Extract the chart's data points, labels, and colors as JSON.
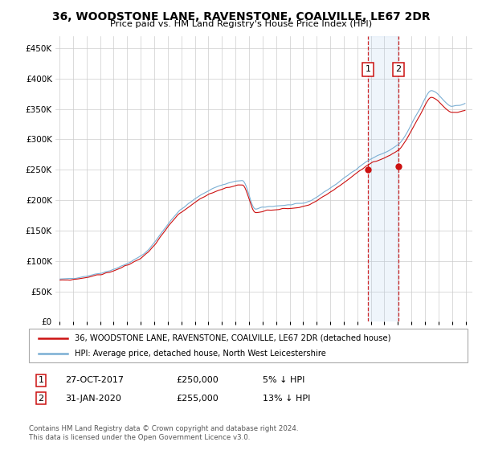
{
  "title": "36, WOODSTONE LANE, RAVENSTONE, COALVILLE, LE67 2DR",
  "subtitle": "Price paid vs. HM Land Registry's House Price Index (HPI)",
  "legend_line1": "36, WOODSTONE LANE, RAVENSTONE, COALVILLE, LE67 2DR (detached house)",
  "legend_line2": "HPI: Average price, detached house, North West Leicestershire",
  "footnote": "Contains HM Land Registry data © Crown copyright and database right 2024.\nThis data is licensed under the Open Government Licence v3.0.",
  "sale1_label": "1",
  "sale1_date": "27-OCT-2017",
  "sale1_price": "£250,000",
  "sale1_note": "5% ↓ HPI",
  "sale2_label": "2",
  "sale2_date": "31-JAN-2020",
  "sale2_price": "£255,000",
  "sale2_note": "13% ↓ HPI",
  "hpi_color": "#7bafd4",
  "price_color": "#cc1111",
  "sale_marker_color": "#cc1111",
  "highlight_color": "#ddeeff",
  "ylim": [
    0,
    470000
  ],
  "yticks": [
    0,
    50000,
    100000,
    150000,
    200000,
    250000,
    300000,
    350000,
    400000,
    450000
  ],
  "start_year": 1995,
  "end_year": 2025
}
